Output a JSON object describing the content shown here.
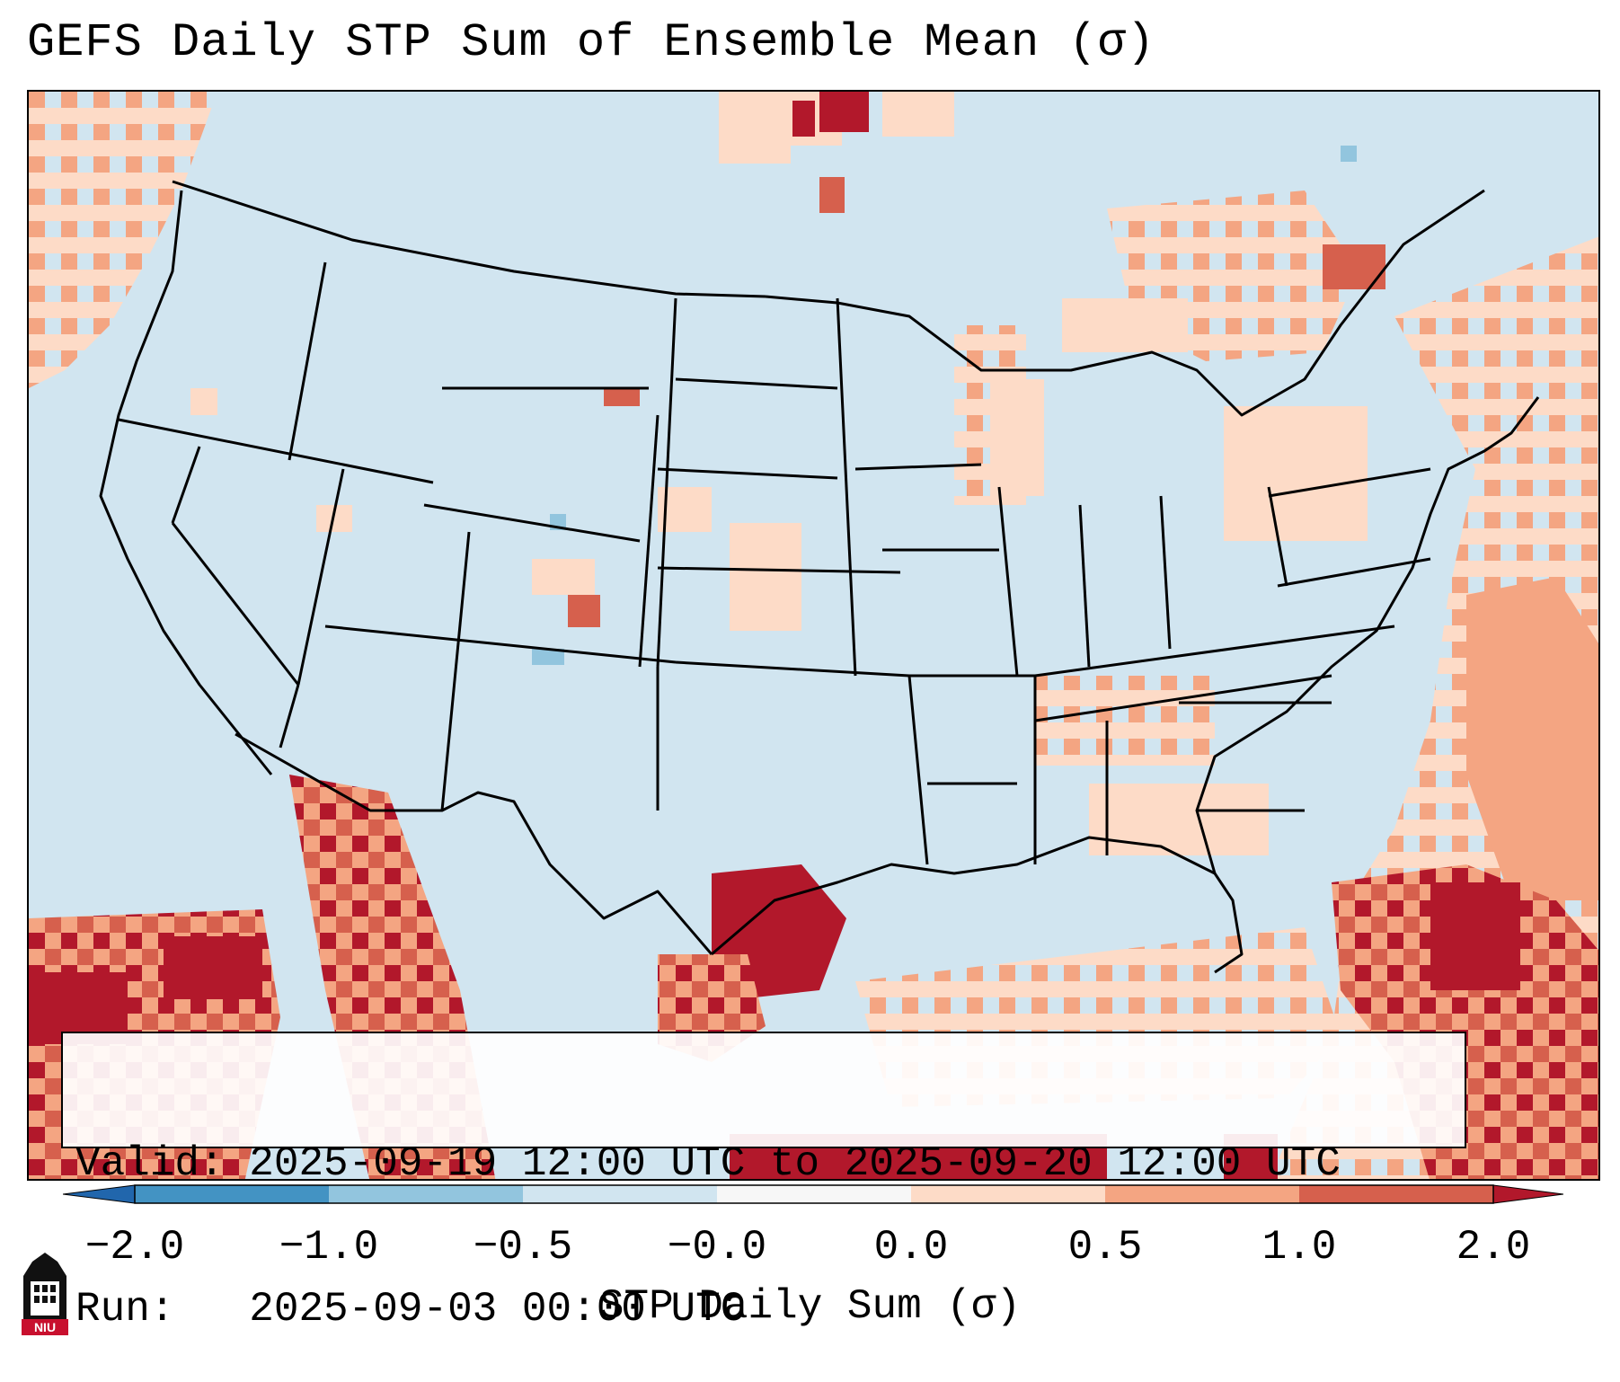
{
  "title": "GEFS Daily STP Sum of Ensemble Mean (σ)",
  "info": {
    "valid_line": "Valid: 2025-09-19 12:00 UTC to 2025-09-20 12:00 UTC",
    "run_line": "Run:   2025-09-03 00:00 UTC"
  },
  "colorbar": {
    "label": "STP Daily Sum (σ)",
    "ticks": [
      "−2.0",
      "−1.0",
      "−0.5",
      "−0.0",
      "0.0",
      "0.5",
      "1.0",
      "2.0"
    ],
    "colors": [
      "#2166ac",
      "#4393c3",
      "#92c5de",
      "#d1e5f0",
      "#f7f7f7",
      "#fddbc7",
      "#f4a582",
      "#d6604d",
      "#b2182b"
    ]
  },
  "map": {
    "background_color": "#d1e5f0",
    "region": "Continental United States, southern Canada, northern Mexico, Gulf of Mexico, western Atlantic"
  },
  "logo": {
    "text": "NIU"
  }
}
